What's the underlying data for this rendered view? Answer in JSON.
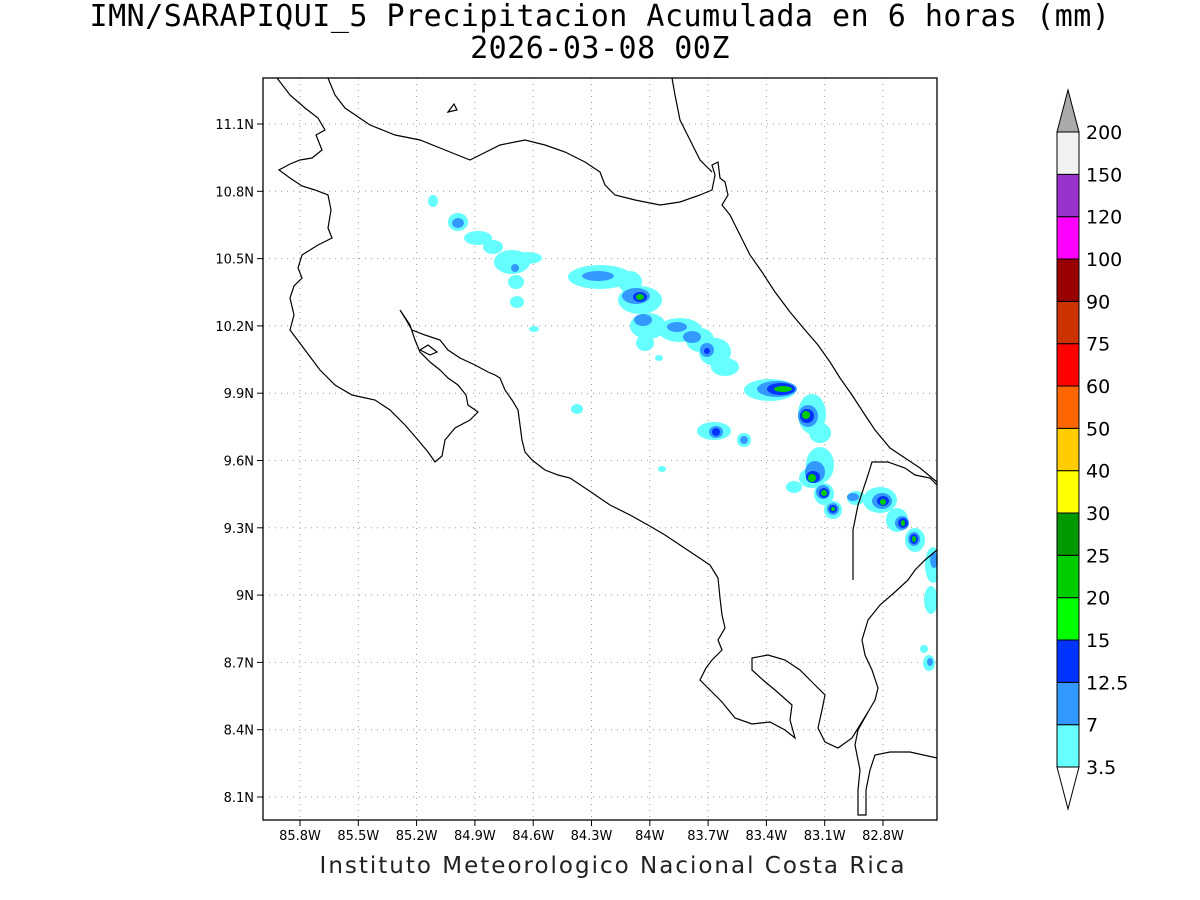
{
  "title": "IMN/SARAPIQUI_5 Precipitacion Acumulada en 6 horas (mm)",
  "subtitle": "2026-03-08 00Z",
  "footer": "Instituto Meteorologico Nacional Costa Rica",
  "map": {
    "lon_ticks": [
      "85.8W",
      "85.5W",
      "85.2W",
      "84.9W",
      "84.6W",
      "84.3W",
      "84W",
      "83.7W",
      "83.4W",
      "83.1W",
      "82.8W"
    ],
    "lat_ticks": [
      "11.1N",
      "10.8N",
      "10.5N",
      "10.2N",
      "9.9N",
      "9.6N",
      "9.3N",
      "9N",
      "8.7N",
      "8.4N",
      "8.1N"
    ],
    "grid": "dotted"
  },
  "colorbar": {
    "levels": [
      "3.5",
      "7",
      "12.5",
      "15",
      "20",
      "25",
      "30",
      "40",
      "50",
      "60",
      "75",
      "90",
      "100",
      "120",
      "150",
      "200"
    ],
    "colors": [
      "#ffffff",
      "#66ffff",
      "#3399ff",
      "#0033ff",
      "#00ff00",
      "#00cc00",
      "#009900",
      "#ffff00",
      "#ffcc00",
      "#ff6600",
      "#ff0000",
      "#cc3300",
      "#990000",
      "#ff00ff",
      "#9933cc",
      "#f2f2f2",
      "#aaaaaa"
    ]
  },
  "colors": {
    "light_cyan": "#66ffff",
    "blue": "#3399ff",
    "dark_blue": "#0033ff",
    "green": "#00cc00",
    "coastline": "#000000"
  }
}
